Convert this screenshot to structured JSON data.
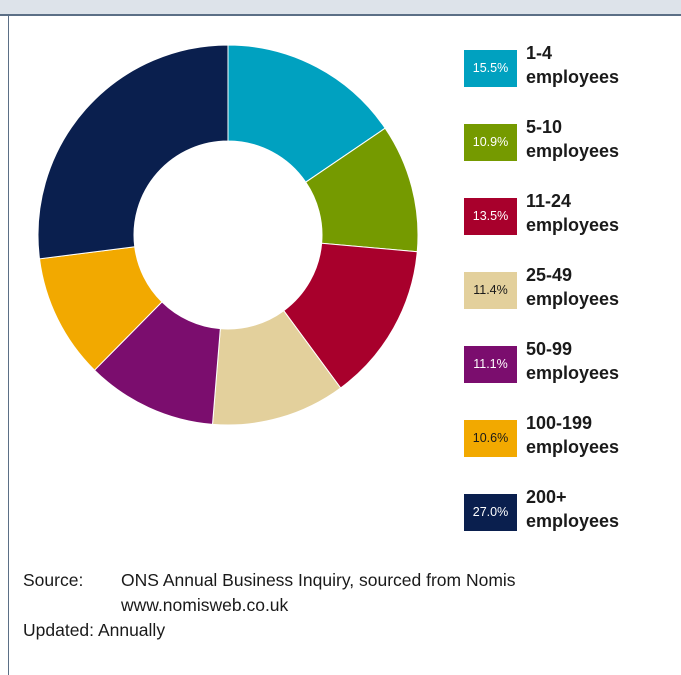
{
  "chart_data": {
    "type": "pie",
    "categories": [
      "1-4",
      "5-10",
      "11-24",
      "25-49",
      "50-99",
      "100-199",
      "200+"
    ],
    "values": [
      15.5,
      10.9,
      13.5,
      11.4,
      11.1,
      10.6,
      27.0
    ],
    "value_labels": [
      "15.5%",
      "10.9%",
      "13.5%",
      "11.4%",
      "11.1%",
      "10.6%",
      "27.0%"
    ],
    "unit_label": "employees",
    "colors": [
      "#00a1c0",
      "#759a00",
      "#a8002c",
      "#e3d09c",
      "#7b0d6e",
      "#f2a900",
      "#0a1f4e"
    ],
    "label_text_colors": [
      "#ffffff",
      "#ffffff",
      "#ffffff",
      "#1a1a1a",
      "#ffffff",
      "#1a1a1a",
      "#ffffff"
    ],
    "donut": true,
    "legend_position": "right"
  },
  "source": {
    "label": "Source:",
    "line1": "ONS Annual Business Inquiry, sourced from Nomis",
    "line2": "www.nomisweb.co.uk"
  },
  "updated": {
    "label": "Updated:",
    "value": "Annually"
  }
}
